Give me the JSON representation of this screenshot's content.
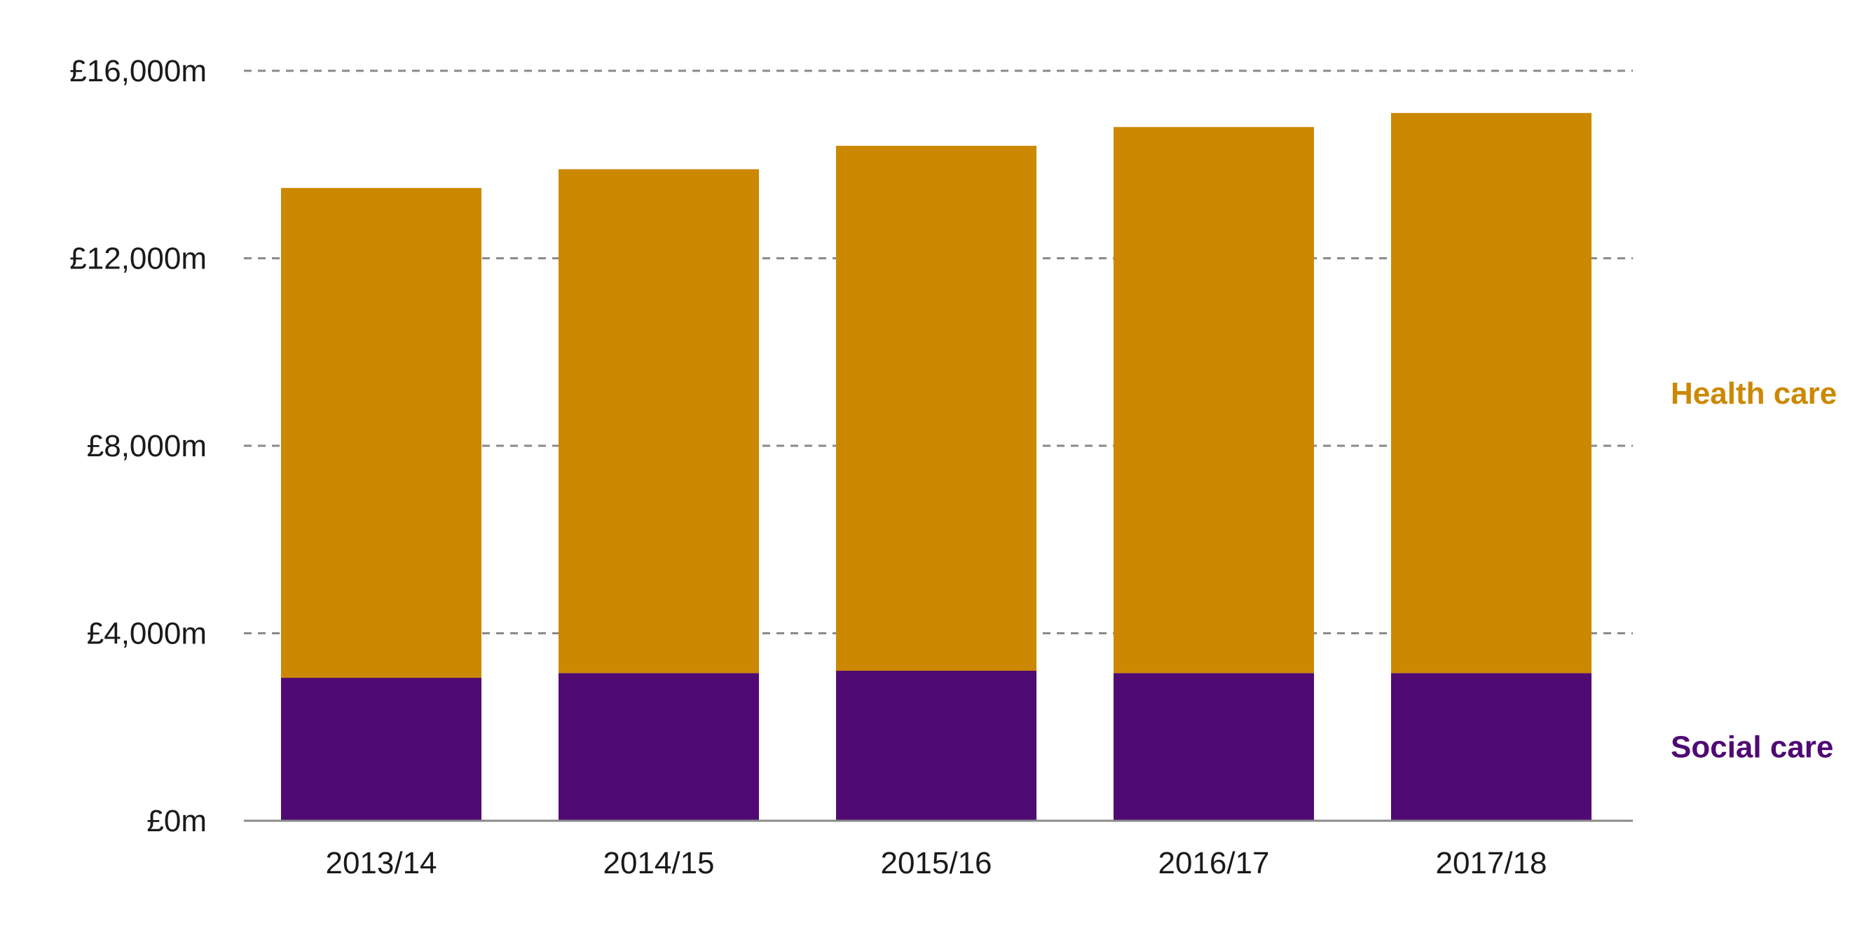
{
  "chart_data": {
    "type": "bar",
    "stacked": true,
    "categories": [
      "2013/14",
      "2014/15",
      "2015/16",
      "2016/17",
      "2017/18"
    ],
    "series": [
      {
        "name": "Social care",
        "color": "#4f0a73",
        "values": [
          3050,
          3150,
          3200,
          3150,
          3150
        ]
      },
      {
        "name": "Health care",
        "color": "#cc8800",
        "values": [
          10450,
          10750,
          11200,
          11650,
          11950
        ]
      }
    ],
    "yticks": [
      {
        "value": 0,
        "label": "£0m"
      },
      {
        "value": 4000,
        "label": "£4,000m"
      },
      {
        "value": 8000,
        "label": "£8,000m"
      },
      {
        "value": 12000,
        "label": "£12,000m"
      },
      {
        "value": 16000,
        "label": "£16,000m"
      }
    ],
    "ylim": [
      0,
      16000
    ],
    "grid": true,
    "legend_placement": "right",
    "title": "",
    "xlabel": "",
    "ylabel": ""
  }
}
